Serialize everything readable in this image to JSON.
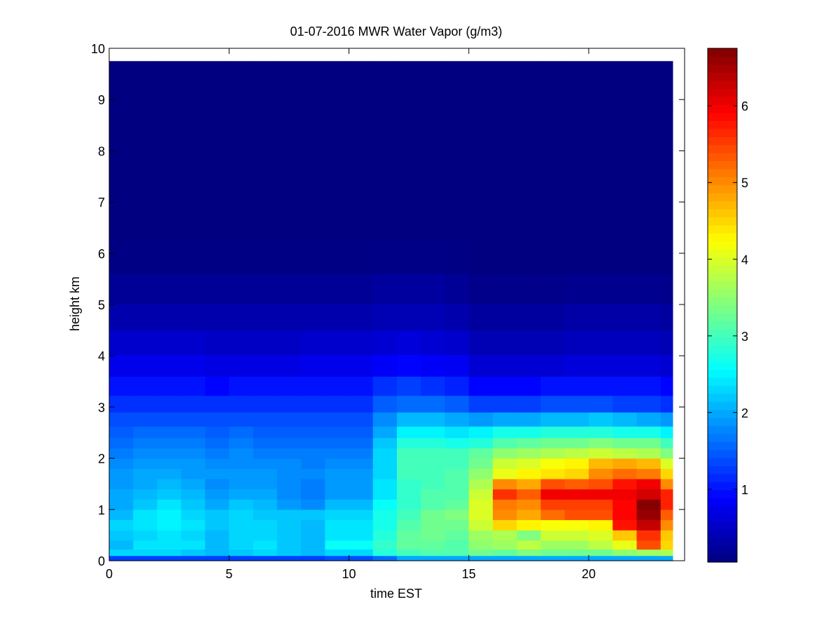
{
  "chart_data": {
    "type": "heatmap",
    "title": "01-07-2016 MWR Water Vapor (g/m3)",
    "xlabel": "time EST",
    "ylabel": "height km",
    "xlim": [
      0,
      24
    ],
    "ylim": [
      0,
      10
    ],
    "x_ticks": [
      0,
      5,
      10,
      15,
      20
    ],
    "y_ticks": [
      0,
      1,
      2,
      3,
      4,
      5,
      6,
      7,
      8,
      9,
      10
    ],
    "colormap": "jet",
    "colorbar": {
      "range": [
        0.05,
        6.75
      ],
      "ticks": [
        1,
        2,
        3,
        4,
        5,
        6
      ]
    },
    "grid": false,
    "x": [
      0,
      1,
      2,
      3,
      4,
      5,
      6,
      7,
      8,
      9,
      10,
      11,
      12,
      13,
      14,
      15,
      16,
      17,
      18,
      19,
      20,
      21,
      22,
      23
    ],
    "y": [
      0.05,
      0.15,
      0.3,
      0.5,
      0.7,
      0.9,
      1.1,
      1.3,
      1.5,
      1.7,
      1.9,
      2.1,
      2.3,
      2.5,
      2.75,
      3.05,
      3.4,
      3.8,
      4.25,
      4.75,
      5.3,
      5.9,
      6.6,
      7.4,
      8.3,
      9.3
    ],
    "y_top": 9.75,
    "z": [
      [
        1.3,
        1.3,
        1.3,
        1.3,
        1.3,
        1.3,
        1.3,
        1.3,
        1.3,
        1.4,
        1.4,
        1.6,
        2.0,
        2.0,
        2.0,
        2.0,
        2.0,
        2.0,
        2.0,
        2.0,
        2.0,
        2.0,
        2.0,
        2.0
      ],
      [
        2.3,
        2.3,
        2.3,
        2.2,
        2.1,
        2.2,
        2.3,
        2.2,
        2.1,
        2.3,
        2.3,
        2.8,
        3.0,
        3.1,
        3.1,
        3.3,
        3.2,
        3.4,
        3.3,
        3.3,
        3.3,
        3.5,
        3.6,
        3.7
      ],
      [
        2.1,
        2.4,
        2.4,
        2.4,
        2.1,
        2.3,
        2.4,
        2.2,
        2.1,
        2.6,
        2.6,
        2.9,
        3.2,
        3.2,
        3.1,
        3.5,
        3.6,
        3.8,
        3.6,
        3.6,
        3.8,
        4.1,
        5.4,
        4.5
      ],
      [
        2.2,
        2.3,
        2.4,
        2.3,
        2.1,
        2.3,
        2.3,
        2.2,
        2.1,
        2.4,
        2.4,
        2.8,
        3.2,
        3.3,
        3.2,
        3.6,
        3.7,
        3.4,
        3.9,
        3.9,
        4.0,
        4.6,
        5.6,
        4.6
      ],
      [
        2.3,
        2.4,
        2.5,
        2.4,
        2.2,
        2.3,
        2.3,
        2.2,
        2.1,
        2.4,
        2.4,
        2.7,
        3.1,
        3.3,
        3.3,
        3.9,
        4.5,
        4.3,
        4.2,
        4.2,
        4.3,
        5.8,
        6.3,
        5.0
      ],
      [
        2.1,
        2.4,
        2.5,
        2.3,
        2.2,
        2.3,
        2.2,
        2.2,
        2.2,
        2.3,
        2.3,
        2.7,
        3.0,
        3.3,
        3.4,
        4.0,
        5.0,
        4.8,
        5.2,
        5.4,
        5.4,
        5.9,
        6.6,
        5.3
      ],
      [
        2.0,
        2.2,
        2.4,
        2.2,
        2.0,
        2.2,
        2.1,
        1.9,
        1.8,
        2.1,
        2.1,
        2.6,
        2.9,
        3.1,
        3.2,
        4.0,
        5.1,
        5.0,
        5.5,
        5.5,
        5.5,
        5.9,
        6.7,
        5.7
      ],
      [
        2.0,
        2.1,
        2.2,
        2.1,
        1.9,
        2.0,
        2.0,
        1.8,
        1.7,
        1.9,
        1.9,
        2.4,
        2.9,
        3.1,
        3.1,
        3.9,
        5.6,
        5.3,
        6.0,
        6.0,
        6.0,
        6.0,
        6.2,
        5.7
      ],
      [
        1.9,
        2.0,
        2.1,
        2.0,
        1.8,
        1.9,
        1.9,
        1.8,
        1.7,
        1.9,
        1.9,
        2.4,
        2.9,
        3.0,
        3.1,
        3.7,
        5.0,
        4.8,
        5.4,
        5.3,
        5.4,
        5.8,
        6.0,
        5.0
      ],
      [
        1.9,
        2.0,
        2.0,
        1.9,
        1.9,
        1.9,
        1.9,
        1.8,
        1.8,
        1.9,
        1.9,
        2.3,
        3.0,
        3.0,
        3.1,
        3.5,
        4.1,
        4.3,
        4.4,
        4.5,
        5.0,
        5.2,
        5.1,
        4.5
      ],
      [
        1.8,
        1.9,
        1.9,
        1.9,
        1.8,
        1.8,
        1.8,
        1.8,
        1.7,
        1.8,
        1.8,
        2.3,
        3.0,
        3.0,
        3.0,
        3.3,
        3.9,
        4.0,
        4.2,
        4.3,
        4.7,
        4.8,
        4.7,
        4.0
      ],
      [
        1.7,
        1.8,
        1.8,
        1.8,
        1.7,
        1.8,
        1.7,
        1.7,
        1.7,
        1.7,
        1.7,
        2.3,
        3.0,
        3.0,
        3.0,
        3.2,
        3.5,
        3.6,
        3.7,
        3.8,
        3.9,
        3.8,
        3.7,
        3.4
      ],
      [
        1.6,
        1.7,
        1.7,
        1.7,
        1.6,
        1.7,
        1.6,
        1.6,
        1.6,
        1.6,
        1.6,
        2.2,
        2.8,
        2.8,
        2.7,
        2.8,
        3.1,
        3.2,
        3.3,
        3.3,
        3.4,
        3.3,
        3.3,
        3.0
      ],
      [
        1.5,
        1.6,
        1.6,
        1.6,
        1.5,
        1.6,
        1.5,
        1.5,
        1.5,
        1.5,
        1.5,
        2.0,
        2.5,
        2.5,
        2.4,
        2.5,
        2.7,
        2.7,
        2.8,
        2.8,
        2.8,
        2.7,
        2.7,
        2.5
      ],
      [
        1.4,
        1.4,
        1.4,
        1.4,
        1.4,
        1.4,
        1.4,
        1.4,
        1.4,
        1.4,
        1.4,
        1.8,
        2.1,
        2.1,
        2.0,
        1.9,
        2.0,
        2.0,
        2.1,
        2.1,
        2.2,
        2.1,
        2.0,
        1.9
      ],
      [
        1.2,
        1.2,
        1.2,
        1.2,
        1.2,
        1.2,
        1.2,
        1.2,
        1.2,
        1.2,
        1.2,
        1.5,
        1.6,
        1.6,
        1.5,
        1.3,
        1.3,
        1.3,
        1.4,
        1.4,
        1.4,
        1.3,
        1.3,
        1.2
      ],
      [
        1.0,
        1.0,
        1.0,
        1.0,
        0.9,
        1.0,
        1.0,
        1.0,
        1.0,
        1.0,
        1.0,
        1.2,
        1.3,
        1.2,
        1.1,
        0.9,
        0.9,
        0.9,
        1.0,
        1.0,
        1.0,
        1.0,
        1.0,
        0.9
      ],
      [
        0.75,
        0.75,
        0.75,
        0.75,
        0.7,
        0.7,
        0.7,
        0.7,
        0.75,
        0.75,
        0.75,
        0.85,
        0.9,
        0.85,
        0.8,
        0.6,
        0.6,
        0.6,
        0.6,
        0.65,
        0.65,
        0.65,
        0.65,
        0.6
      ],
      [
        0.55,
        0.55,
        0.55,
        0.55,
        0.5,
        0.5,
        0.5,
        0.5,
        0.55,
        0.55,
        0.55,
        0.6,
        0.65,
        0.6,
        0.55,
        0.4,
        0.4,
        0.4,
        0.4,
        0.45,
        0.45,
        0.45,
        0.45,
        0.4
      ],
      [
        0.35,
        0.35,
        0.35,
        0.35,
        0.35,
        0.35,
        0.35,
        0.35,
        0.35,
        0.35,
        0.35,
        0.4,
        0.4,
        0.4,
        0.35,
        0.25,
        0.25,
        0.25,
        0.25,
        0.3,
        0.3,
        0.3,
        0.3,
        0.25
      ],
      [
        0.2,
        0.2,
        0.2,
        0.2,
        0.2,
        0.2,
        0.2,
        0.2,
        0.2,
        0.2,
        0.2,
        0.25,
        0.25,
        0.25,
        0.2,
        0.12,
        0.12,
        0.12,
        0.12,
        0.15,
        0.15,
        0.15,
        0.15,
        0.12
      ],
      [
        0.08,
        0.08,
        0.08,
        0.08,
        0.08,
        0.08,
        0.08,
        0.08,
        0.08,
        0.08,
        0.08,
        0.1,
        0.1,
        0.1,
        0.08,
        0.06,
        0.06,
        0.06,
        0.06,
        0.06,
        0.06,
        0.06,
        0.06,
        0.06
      ],
      [
        0.05,
        0.05,
        0.05,
        0.05,
        0.05,
        0.05,
        0.05,
        0.05,
        0.05,
        0.05,
        0.05,
        0.05,
        0.05,
        0.05,
        0.05,
        0.05,
        0.05,
        0.05,
        0.05,
        0.05,
        0.05,
        0.05,
        0.05,
        0.05
      ],
      [
        0.05,
        0.05,
        0.05,
        0.05,
        0.05,
        0.05,
        0.05,
        0.05,
        0.05,
        0.05,
        0.05,
        0.05,
        0.05,
        0.05,
        0.05,
        0.05,
        0.05,
        0.05,
        0.05,
        0.05,
        0.05,
        0.05,
        0.05,
        0.05
      ],
      [
        0.05,
        0.05,
        0.05,
        0.05,
        0.05,
        0.05,
        0.05,
        0.05,
        0.05,
        0.05,
        0.05,
        0.05,
        0.05,
        0.05,
        0.05,
        0.05,
        0.05,
        0.05,
        0.05,
        0.05,
        0.05,
        0.05,
        0.05,
        0.05
      ],
      [
        0.05,
        0.05,
        0.05,
        0.05,
        0.05,
        0.05,
        0.05,
        0.05,
        0.05,
        0.05,
        0.05,
        0.05,
        0.05,
        0.05,
        0.05,
        0.05,
        0.05,
        0.05,
        0.05,
        0.05,
        0.05,
        0.05,
        0.05,
        0.05
      ]
    ]
  }
}
